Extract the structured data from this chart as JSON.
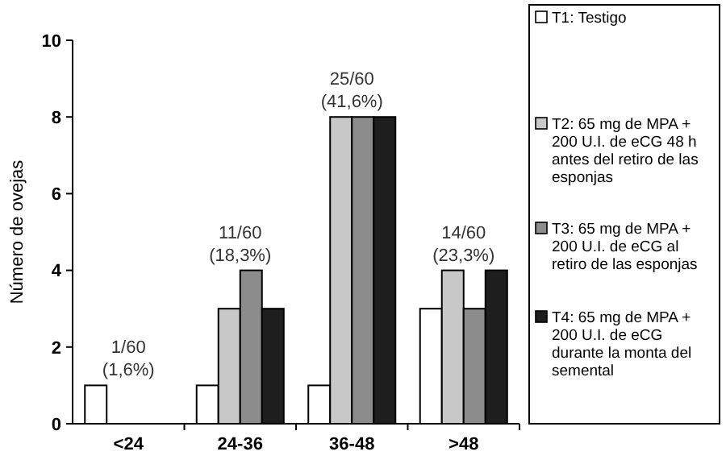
{
  "chart_data": {
    "type": "bar",
    "ylabel": "Número de ovejas",
    "categories": [
      "<24",
      "24-36",
      "36-48",
      ">48"
    ],
    "series": [
      {
        "name": "T1: Testigo",
        "color": "#ffffff",
        "values": [
          1,
          1,
          1,
          3
        ]
      },
      {
        "name": "T2: 65 mg de MPA + 200 U.I. de eCG 48 h antes del retiro de las esponjas",
        "color": "#c8c8c8",
        "values": [
          0,
          3,
          8,
          4
        ]
      },
      {
        "name": "T3: 65 mg de MPA + 200 U.I. de eCG al retiro de las esponjas",
        "color": "#8c8c8c",
        "values": [
          0,
          4,
          8,
          3
        ]
      },
      {
        "name": "T4: 65 mg de MPA + 200 U.I. de eCG durante la monta del semental",
        "color": "#1e1e1e",
        "values": [
          0,
          3,
          8,
          4
        ]
      }
    ],
    "ylim": [
      0,
      10
    ],
    "yticks": [
      0,
      2,
      4,
      6,
      8,
      10
    ],
    "legend": "right",
    "annotations": [
      "1/60\n(1,6%)",
      "11/60\n(18,3%)",
      "25/60\n(41,6%)",
      "14/60\n(23,3%)"
    ]
  }
}
